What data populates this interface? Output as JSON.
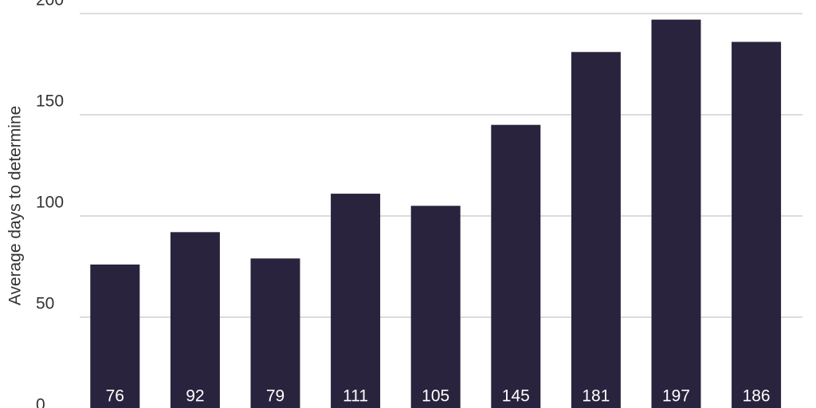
{
  "chart_data": {
    "type": "bar",
    "y_label": "Average days to determine",
    "values": [
      76,
      92,
      79,
      111,
      105,
      145,
      181,
      197,
      186
    ],
    "color": "#29233d",
    "ylim": [
      0,
      200
    ],
    "yticks": [
      0,
      50,
      100,
      150,
      200
    ],
    "grid": true
  }
}
